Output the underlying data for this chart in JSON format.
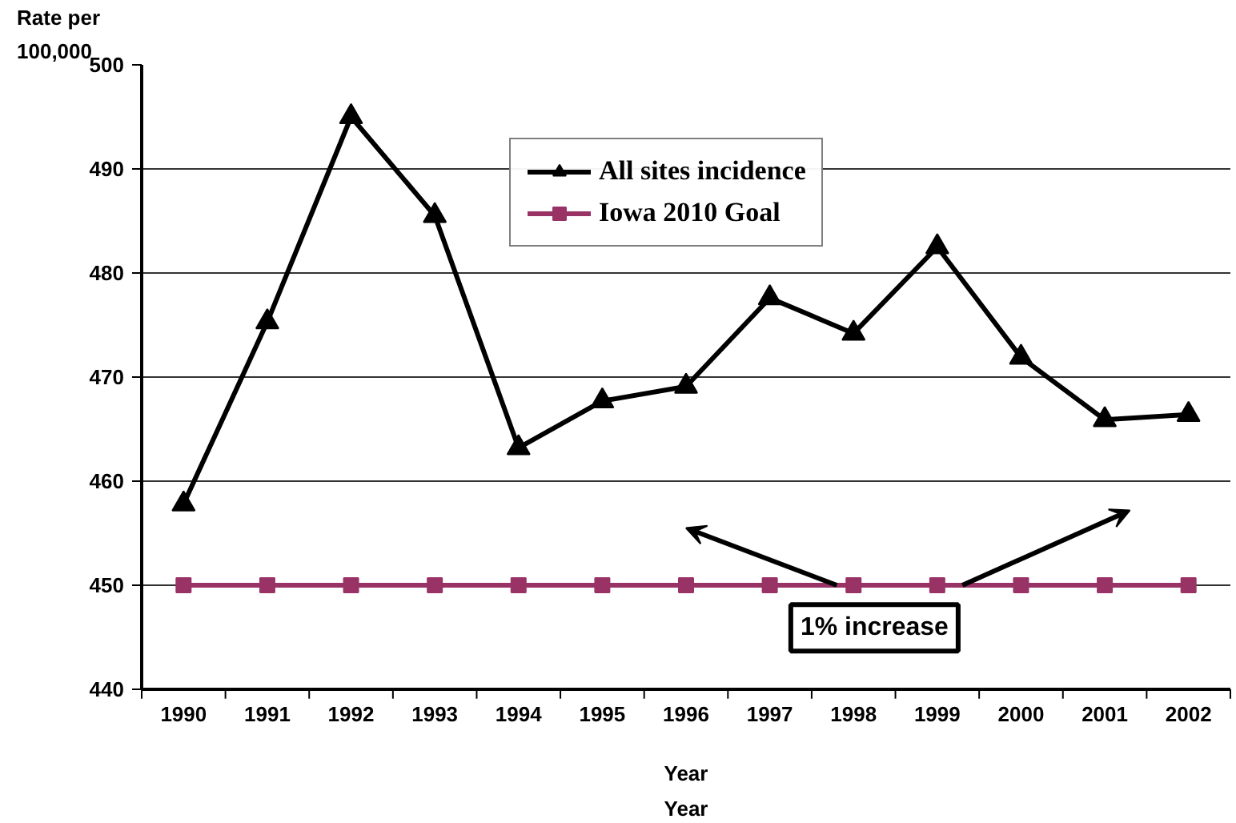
{
  "chart_data": {
    "type": "line",
    "ylabel": "Rate per 100,000",
    "xlabel": "Year",
    "categories": [
      "1990",
      "1991",
      "1992",
      "1993",
      "1994",
      "1995",
      "1996",
      "1997",
      "1998",
      "1999",
      "2000",
      "2001",
      "2002"
    ],
    "series": [
      {
        "name": "All sites incidence",
        "color": "#000000",
        "marker": "triangle",
        "values": [
          457.8,
          475.3,
          495.0,
          485.5,
          463.2,
          467.7,
          469.1,
          477.6,
          474.2,
          482.5,
          471.9,
          465.9,
          466.4
        ]
      },
      {
        "name": "Iowa 2010 Goal",
        "color": "#993366",
        "marker": "square",
        "values": [
          450,
          450,
          450,
          450,
          450,
          450,
          450,
          450,
          450,
          450,
          450,
          450,
          450
        ]
      }
    ],
    "ylim": [
      440,
      500
    ],
    "yticks": [
      440,
      450,
      460,
      470,
      480,
      490,
      500
    ],
    "grid": "y",
    "legend": "top right",
    "line_style": "solid",
    "annotations": [
      "1% increase",
      "Year"
    ]
  }
}
